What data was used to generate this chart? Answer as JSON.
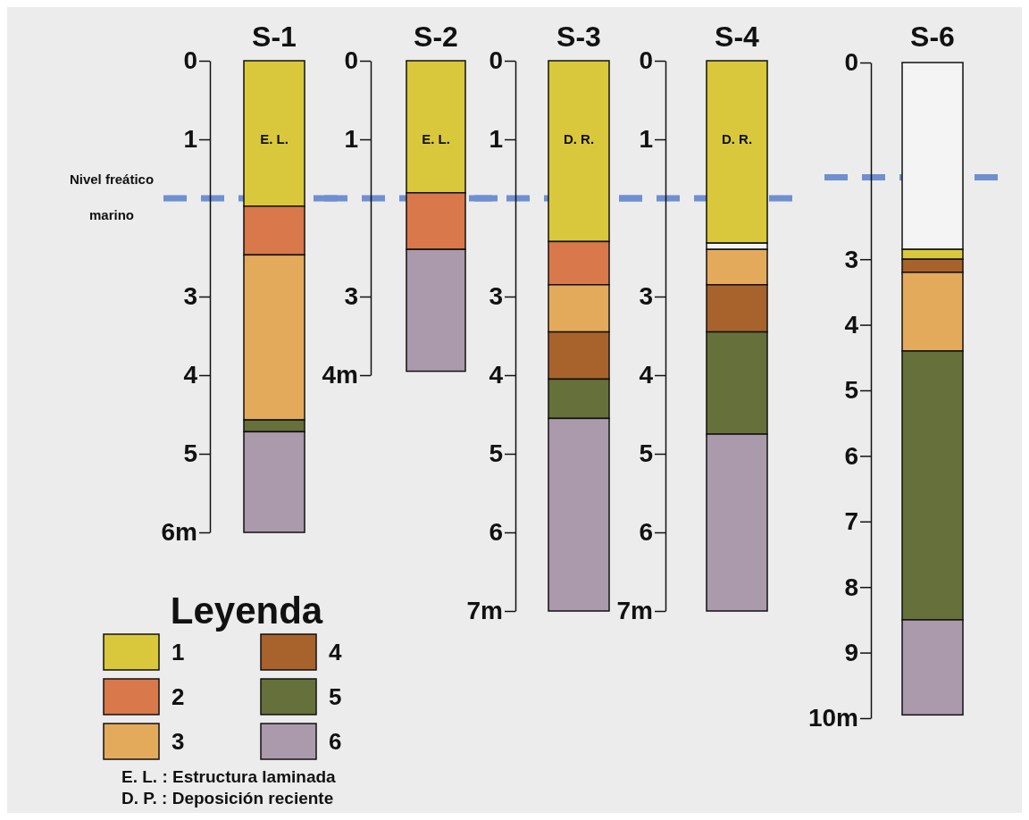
{
  "chart_data": [
    {
      "type": "bar",
      "title": "S-1",
      "categories": [
        null
      ],
      "stacked": true,
      "ylim": [
        6,
        0
      ],
      "yticks": [
        0,
        1,
        3,
        4,
        5,
        {
          "value": 6,
          "label": "6m"
        }
      ],
      "series": [
        {
          "color": "#d9c83c",
          "values": [
            1.85
          ]
        },
        {
          "color": "#d9784a",
          "values": [
            0.62
          ]
        },
        {
          "color": "#e4aa5c",
          "values": [
            2.1
          ]
        },
        {
          "color": "#66703a",
          "values": [
            0.15
          ]
        },
        {
          "color": "#ab9aab",
          "values": [
            1.28
          ]
        }
      ],
      "annotations": [
        "E. L."
      ],
      "ref_lines": [
        {
          "axis": "y",
          "value": 1.75,
          "label": "Nivel freático marino",
          "color": "#6f8fd0",
          "line_style": "dashed"
        }
      ]
    },
    {
      "type": "bar",
      "title": "S-2",
      "categories": [
        null
      ],
      "stacked": true,
      "ylim": [
        4,
        0
      ],
      "yticks": [
        0,
        1,
        3,
        {
          "value": 4,
          "label": "4m"
        }
      ],
      "series": [
        {
          "color": "#d9c83c",
          "values": [
            1.68
          ]
        },
        {
          "color": "#d9784a",
          "values": [
            0.72
          ]
        },
        {
          "color": "#ab9aab",
          "values": [
            1.55
          ]
        }
      ],
      "annotations": [
        "E. L."
      ],
      "ref_lines": [
        {
          "axis": "y",
          "value": 1.75,
          "color": "#6f8fd0",
          "line_style": "dashed"
        }
      ]
    },
    {
      "type": "bar",
      "title": "S-3",
      "categories": [
        null
      ],
      "stacked": true,
      "ylim": [
        7,
        0
      ],
      "yticks": [
        0,
        1,
        3,
        4,
        5,
        6,
        {
          "value": 7,
          "label": "7m"
        }
      ],
      "series": [
        {
          "name": "1",
          "color": "#d9c83c",
          "values": [
            2.3
          ]
        },
        {
          "name": "2",
          "color": "#d9784a",
          "values": [
            0.55
          ]
        },
        {
          "name": "3",
          "color": "#e4aa5c",
          "values": [
            0.6
          ]
        },
        {
          "name": "4",
          "color": "#a8622c",
          "values": [
            0.6
          ]
        },
        {
          "name": "5",
          "color": "#66703a",
          "values": [
            0.5
          ]
        },
        {
          "name": "6",
          "color": "#ab9aab",
          "values": [
            2.45
          ]
        }
      ],
      "legend": "bottom left",
      "legend_title": "Leyenda",
      "annotations": [
        "D. R.",
        "E. L. : Estructura laminada",
        "D. P. : Deposición reciente"
      ],
      "ref_lines": [
        {
          "axis": "y",
          "value": 1.75,
          "color": "#6f8fd0",
          "line_style": "dashed"
        }
      ]
    },
    {
      "type": "bar",
      "title": "S-4",
      "categories": [
        null
      ],
      "stacked": true,
      "ylim": [
        7,
        0
      ],
      "yticks": [
        0,
        1,
        3,
        4,
        5,
        6,
        {
          "value": 7,
          "label": "7m"
        }
      ],
      "series": [
        {
          "color": "#d9c83c",
          "values": [
            2.32
          ]
        },
        {
          "color": "#f4f4f4",
          "values": [
            0.08
          ]
        },
        {
          "color": "#e4aa5c",
          "values": [
            0.45
          ]
        },
        {
          "color": "#a8622c",
          "values": [
            0.6
          ]
        },
        {
          "color": "#66703a",
          "values": [
            1.3
          ]
        },
        {
          "color": "#ab9aab",
          "values": [
            2.25
          ]
        }
      ],
      "annotations": [
        "D. R."
      ],
      "ref_lines": [
        {
          "axis": "y",
          "value": 1.75,
          "color": "#6f8fd0",
          "line_style": "dashed"
        }
      ]
    },
    {
      "type": "bar",
      "title": "S-6",
      "categories": [
        null
      ],
      "stacked": true,
      "ylim": [
        10,
        0
      ],
      "yticks": [
        0,
        3,
        4,
        5,
        6,
        7,
        8,
        9,
        {
          "value": 10,
          "label": "10m"
        }
      ],
      "series": [
        {
          "color": "#f4f4f4",
          "values": [
            2.85
          ]
        },
        {
          "color": "#d9c83c",
          "values": [
            0.15
          ]
        },
        {
          "color": "#a8622c",
          "values": [
            0.2
          ]
        },
        {
          "color": "#e4aa5c",
          "values": [
            1.2
          ]
        },
        {
          "color": "#66703a",
          "values": [
            4.1
          ]
        },
        {
          "color": "#ab9aab",
          "values": [
            1.45
          ]
        }
      ],
      "ref_lines": [
        {
          "axis": "y",
          "value": 1.75,
          "color": "#6f8fd0",
          "line_style": "dashed"
        }
      ]
    }
  ]
}
